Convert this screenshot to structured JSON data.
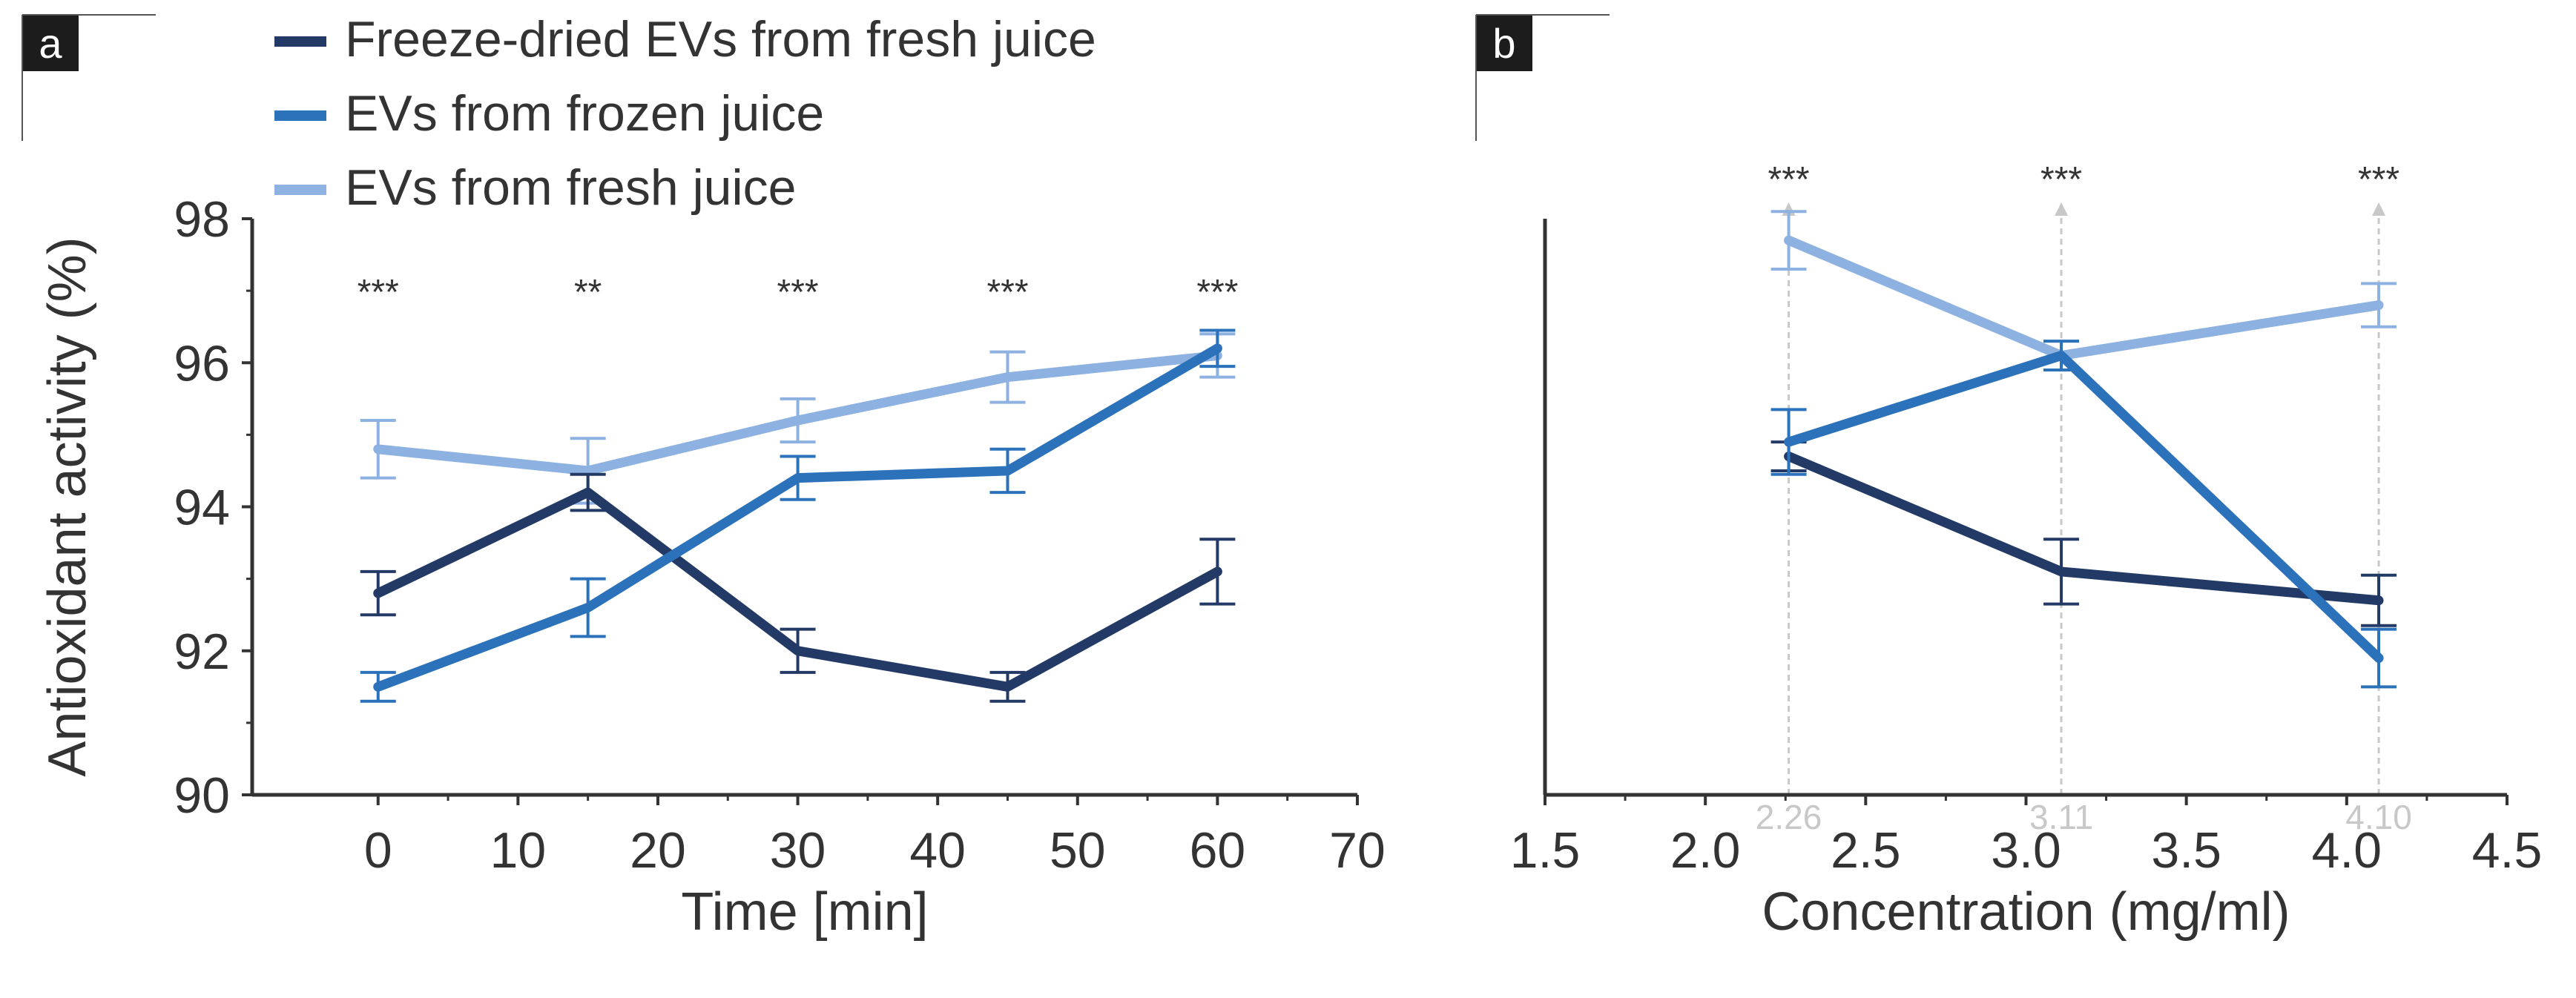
{
  "panel_a": {
    "badge": "a"
  },
  "panel_b": {
    "badge": "b"
  },
  "legend": [
    {
      "label": "Freeze-dried EVs from fresh juice",
      "color": "#243a66"
    },
    {
      "label": "EVs from frozen juice",
      "color": "#2b72ba"
    },
    {
      "label": "EVs from fresh juice",
      "color": "#8db1e0"
    }
  ],
  "colors": {
    "series_dark": "#243a66",
    "series_mid": "#2b72ba",
    "series_light": "#8db1e0",
    "axis": "#333333",
    "text": "#333333",
    "guide": "#c8c8c8",
    "badge_bg": "#1c1c1c",
    "badge_text": "#ffffff"
  },
  "chart_data": [
    {
      "type": "line",
      "panel": "a",
      "title": "",
      "xlabel": "Time [min]",
      "ylabel": "Antioxidant activity (%)",
      "xlim": [
        -9,
        70
      ],
      "ylim": [
        90,
        98
      ],
      "xticks": [
        0,
        10,
        20,
        30,
        40,
        50,
        60,
        70
      ],
      "yticks": [
        90,
        92,
        94,
        96,
        98
      ],
      "x": [
        0,
        15,
        30,
        45,
        60
      ],
      "series": [
        {
          "name": "Freeze-dried EVs from fresh juice",
          "values": [
            92.8,
            94.2,
            92.0,
            91.5,
            93.1
          ],
          "errors": [
            0.3,
            0.25,
            0.3,
            0.2,
            0.45
          ]
        },
        {
          "name": "EVs from frozen juice",
          "values": [
            91.5,
            92.6,
            94.4,
            94.5,
            96.2
          ],
          "errors": [
            0.2,
            0.4,
            0.3,
            0.3,
            0.25
          ]
        },
        {
          "name": "EVs from fresh juice",
          "values": [
            94.8,
            94.5,
            95.2,
            95.8,
            96.1
          ],
          "errors": [
            0.4,
            0.45,
            0.3,
            0.35,
            0.3
          ]
        }
      ],
      "annotations": [
        {
          "x": 0,
          "text": "***"
        },
        {
          "x": 15,
          "text": "**"
        },
        {
          "x": 30,
          "text": "***"
        },
        {
          "x": 45,
          "text": "***"
        },
        {
          "x": 60,
          "text": "***"
        }
      ]
    },
    {
      "type": "line",
      "panel": "b",
      "title": "",
      "xlabel": "Concentration (mg/ml)",
      "ylabel": "",
      "xlim": [
        1.5,
        4.5
      ],
      "ylim": [
        90,
        98
      ],
      "xticks": [
        "1.5",
        "2.0",
        "2.5",
        "3.0",
        "3.5",
        "4.0",
        "4.5"
      ],
      "x": [
        2.26,
        3.11,
        4.1
      ],
      "guide_labels": [
        "2.26",
        "3.11",
        "4.10"
      ],
      "series": [
        {
          "name": "Freeze-dried EVs from fresh juice",
          "values": [
            94.7,
            93.1,
            92.7
          ],
          "errors": [
            0.2,
            0.45,
            0.35
          ]
        },
        {
          "name": "EVs from frozen juice",
          "values": [
            94.9,
            96.1,
            91.9
          ],
          "errors": [
            0.45,
            0.2,
            0.4
          ]
        },
        {
          "name": "EVs from fresh juice",
          "values": [
            97.7,
            96.1,
            96.8
          ],
          "errors": [
            0.4,
            0.2,
            0.3
          ]
        }
      ],
      "annotations": [
        {
          "x": 2.26,
          "text": "***"
        },
        {
          "x": 3.11,
          "text": "***"
        },
        {
          "x": 4.1,
          "text": "***"
        }
      ]
    }
  ]
}
